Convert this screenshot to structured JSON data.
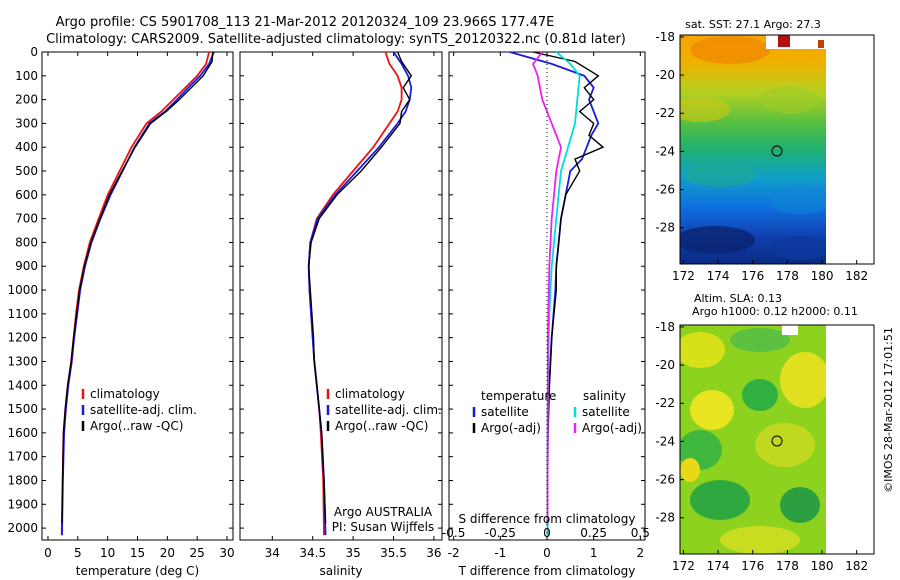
{
  "title_line1": "Argo profile: CS 5901708_113 21-Mar-2012 20120324_109 23.966S 177.47E",
  "title_line2": "Climatology: CARS2009. Satellite-adjusted climatology: synTS_20120322.nc (0.81d later)",
  "colors": {
    "climatology": "#ee1111",
    "satellite": "#1a1add",
    "argo": "#000000",
    "sal_satellite": "#00dddd",
    "sal_argo": "#ee22ee"
  },
  "chart_data": [
    {
      "type": "line",
      "id": "temperature",
      "xlabel": "temperature (deg C)",
      "ylim": [
        2050,
        0
      ],
      "xlim": [
        -1,
        31
      ],
      "xticks": [
        0,
        5,
        10,
        15,
        20,
        25,
        30
      ],
      "yticks": [
        0,
        100,
        200,
        300,
        400,
        500,
        600,
        700,
        800,
        900,
        1000,
        1100,
        1200,
        1300,
        1400,
        1500,
        1600,
        1700,
        1800,
        1900,
        2000
      ],
      "legend": [
        "climatology",
        "satellite-adj. clim.",
        "Argo(..raw -QC)"
      ],
      "series": [
        {
          "name": "climatology",
          "key": "climatology",
          "x": [
            27,
            26.5,
            25,
            23,
            21,
            19,
            16.5,
            14,
            12,
            10,
            8.5,
            7,
            6,
            5.2,
            4.7,
            4.3,
            3.9,
            3.3,
            2.9,
            2.6,
            2.45,
            2.35,
            2.3
          ],
          "y": [
            0,
            50,
            100,
            150,
            200,
            250,
            300,
            400,
            500,
            600,
            700,
            800,
            900,
            1000,
            1100,
            1200,
            1300,
            1400,
            1500,
            1600,
            1800,
            1950,
            2030
          ]
        },
        {
          "name": "satellite-adj. clim.",
          "key": "satellite",
          "x": [
            27.8,
            27,
            25.5,
            23.5,
            21.6,
            19.6,
            17,
            14.5,
            12.5,
            10.5,
            8.8,
            7.3,
            6.2,
            5.4,
            4.9,
            4.4,
            4,
            3.4,
            3,
            2.7,
            2.5,
            2.4,
            2.35
          ],
          "y": [
            0,
            50,
            100,
            150,
            200,
            250,
            300,
            400,
            500,
            600,
            700,
            800,
            900,
            1000,
            1100,
            1200,
            1300,
            1400,
            1500,
            1600,
            1800,
            1950,
            2030
          ]
        },
        {
          "name": "Argo(..raw -QC)",
          "key": "argo",
          "x": [
            27.6,
            27.5,
            26,
            24,
            22,
            19.8,
            17.2,
            14.6,
            12.4,
            10.3,
            8.7,
            7.2,
            6.1,
            5.3,
            4.8,
            4.3,
            3.9,
            3.3,
            2.9,
            2.6,
            2.45,
            2.35
          ],
          "y": [
            0,
            40,
            100,
            150,
            200,
            250,
            300,
            400,
            500,
            600,
            700,
            800,
            900,
            1000,
            1100,
            1200,
            1300,
            1400,
            1500,
            1600,
            1800,
            1980
          ]
        }
      ]
    },
    {
      "type": "line",
      "id": "salinity",
      "xlabel": "salinity",
      "ylim": [
        2050,
        0
      ],
      "xlim": [
        33.6,
        36.1
      ],
      "xticks": [
        34,
        34.5,
        35,
        35.5,
        36
      ],
      "legend": [
        "climatology",
        "satellite-adj. clim.",
        "Argo(..raw -QC)"
      ],
      "annotation": [
        "Argo AUSTRALIA",
        "PI: Susan Wijffels"
      ],
      "series": [
        {
          "name": "climatology",
          "key": "climatology",
          "x": [
            35.4,
            35.45,
            35.55,
            35.6,
            35.6,
            35.55,
            35.45,
            35.25,
            35.0,
            34.75,
            34.55,
            34.47,
            34.45,
            34.46,
            34.48,
            34.5,
            34.52,
            34.55,
            34.58,
            34.6,
            34.63,
            34.64
          ],
          "y": [
            0,
            50,
            100,
            150,
            200,
            250,
            300,
            400,
            500,
            600,
            700,
            800,
            900,
            1000,
            1100,
            1200,
            1300,
            1400,
            1500,
            1600,
            1800,
            2030
          ]
        },
        {
          "name": "satellite-adj. clim.",
          "key": "satellite",
          "x": [
            35.5,
            35.6,
            35.68,
            35.72,
            35.7,
            35.65,
            35.55,
            35.32,
            35.05,
            34.78,
            34.56,
            34.47,
            34.45,
            34.46,
            34.48,
            34.5,
            34.52,
            34.55,
            34.58,
            34.61,
            34.64,
            34.66
          ],
          "y": [
            0,
            50,
            100,
            150,
            200,
            250,
            300,
            400,
            500,
            600,
            700,
            800,
            900,
            1000,
            1100,
            1200,
            1300,
            1400,
            1500,
            1600,
            1800,
            2030
          ]
        },
        {
          "name": "Argo(..raw -QC)",
          "key": "argo",
          "x": [
            35.55,
            35.6,
            35.72,
            35.62,
            35.7,
            35.6,
            35.58,
            35.35,
            35.1,
            34.8,
            34.58,
            34.48,
            34.45,
            34.47,
            34.49,
            34.51,
            34.52,
            34.55,
            34.58,
            34.61,
            34.64,
            34.66
          ],
          "y": [
            0,
            40,
            100,
            150,
            200,
            250,
            300,
            400,
            500,
            600,
            700,
            800,
            900,
            1000,
            1100,
            1200,
            1300,
            1400,
            1500,
            1600,
            1800,
            1980
          ]
        }
      ]
    },
    {
      "type": "line",
      "id": "difference",
      "xlabel": "T difference from climatology",
      "xlabel_top": "S difference from climatology",
      "ylim": [
        2050,
        0
      ],
      "xlim": [
        -2.1,
        2.1
      ],
      "xticks": [
        -2,
        -1,
        0,
        1,
        2
      ],
      "xticks_top": [
        -0.5,
        -0.25,
        0,
        0.25,
        0.5
      ],
      "legend_headers": [
        "temperature",
        "salinity"
      ],
      "legend": [
        "satellite",
        "Argo(-adj)",
        "satellite",
        "Argo(-adj)"
      ],
      "series": [
        {
          "name": "satellite",
          "group": "temperature",
          "key": "satellite",
          "x": [
            -0.8,
            0.1,
            0.8,
            1.0,
            0.9,
            1.0,
            1.1,
            0.95,
            0.85,
            0.75,
            0.5,
            0.4,
            0.3,
            0.25,
            0.2,
            0.18,
            0.1,
            0.05,
            0.02,
            0.01,
            0.01
          ],
          "y": [
            0,
            50,
            100,
            150,
            200,
            250,
            300,
            350,
            400,
            450,
            500,
            600,
            700,
            800,
            900,
            1000,
            1200,
            1400,
            1600,
            1800,
            2030
          ]
        },
        {
          "name": "Argo(-adj)",
          "group": "temperature",
          "key": "argo",
          "x": [
            -0.3,
            0.6,
            1.1,
            0.8,
            1.0,
            0.7,
            1.0,
            0.9,
            1.2,
            0.6,
            0.7,
            0.4,
            0.3,
            0.25,
            0.2,
            0.2,
            0.1,
            0.05,
            0.02,
            0.01
          ],
          "y": [
            0,
            40,
            100,
            150,
            200,
            250,
            300,
            350,
            400,
            450,
            500,
            600,
            700,
            800,
            900,
            1000,
            1200,
            1400,
            1600,
            1980
          ]
        },
        {
          "name": "satellite",
          "group": "salinity",
          "key": "sal_satellite",
          "x": [
            0.2,
            0.5,
            0.7,
            0.65,
            0.6,
            0.45,
            0.3,
            0.2,
            0.1,
            0.05,
            0.02,
            0.01,
            0.01
          ],
          "y": [
            0,
            50,
            100,
            200,
            300,
            400,
            500,
            700,
            900,
            1100,
            1400,
            1700,
            2030
          ]
        },
        {
          "name": "Argo(-adj)",
          "group": "salinity",
          "key": "sal_argo",
          "x": [
            -0.1,
            -0.3,
            -0.2,
            -0.1,
            0.1,
            0.3,
            0.2,
            0.1,
            0.05,
            0.02,
            0.01
          ],
          "y": [
            0,
            50,
            100,
            200,
            300,
            400,
            500,
            700,
            900,
            1200,
            1980
          ]
        }
      ]
    },
    {
      "type": "heatmap",
      "id": "sst-map",
      "title": "sat. SST: 27.1  Argo: 27.3",
      "xticks": [
        172,
        174,
        176,
        178,
        180,
        182
      ],
      "yticks": [
        -18,
        -20,
        -22,
        -24,
        -26,
        -28
      ],
      "marker": {
        "lon": 177.47,
        "lat": -23.97
      }
    },
    {
      "type": "heatmap",
      "id": "sla-map",
      "title_line1": "Altim. SLA: 0.13",
      "title_line2": "Argo h1000: 0.12 h2000: 0.11",
      "xticks": [
        172,
        174,
        176,
        178,
        180,
        182
      ],
      "yticks": [
        -18,
        -20,
        -22,
        -24,
        -26,
        -28
      ],
      "marker": {
        "lon": 177.47,
        "lat": -23.97
      }
    }
  ],
  "side_stamp": "©IMOS 28-Mar-2012 17:01:51"
}
